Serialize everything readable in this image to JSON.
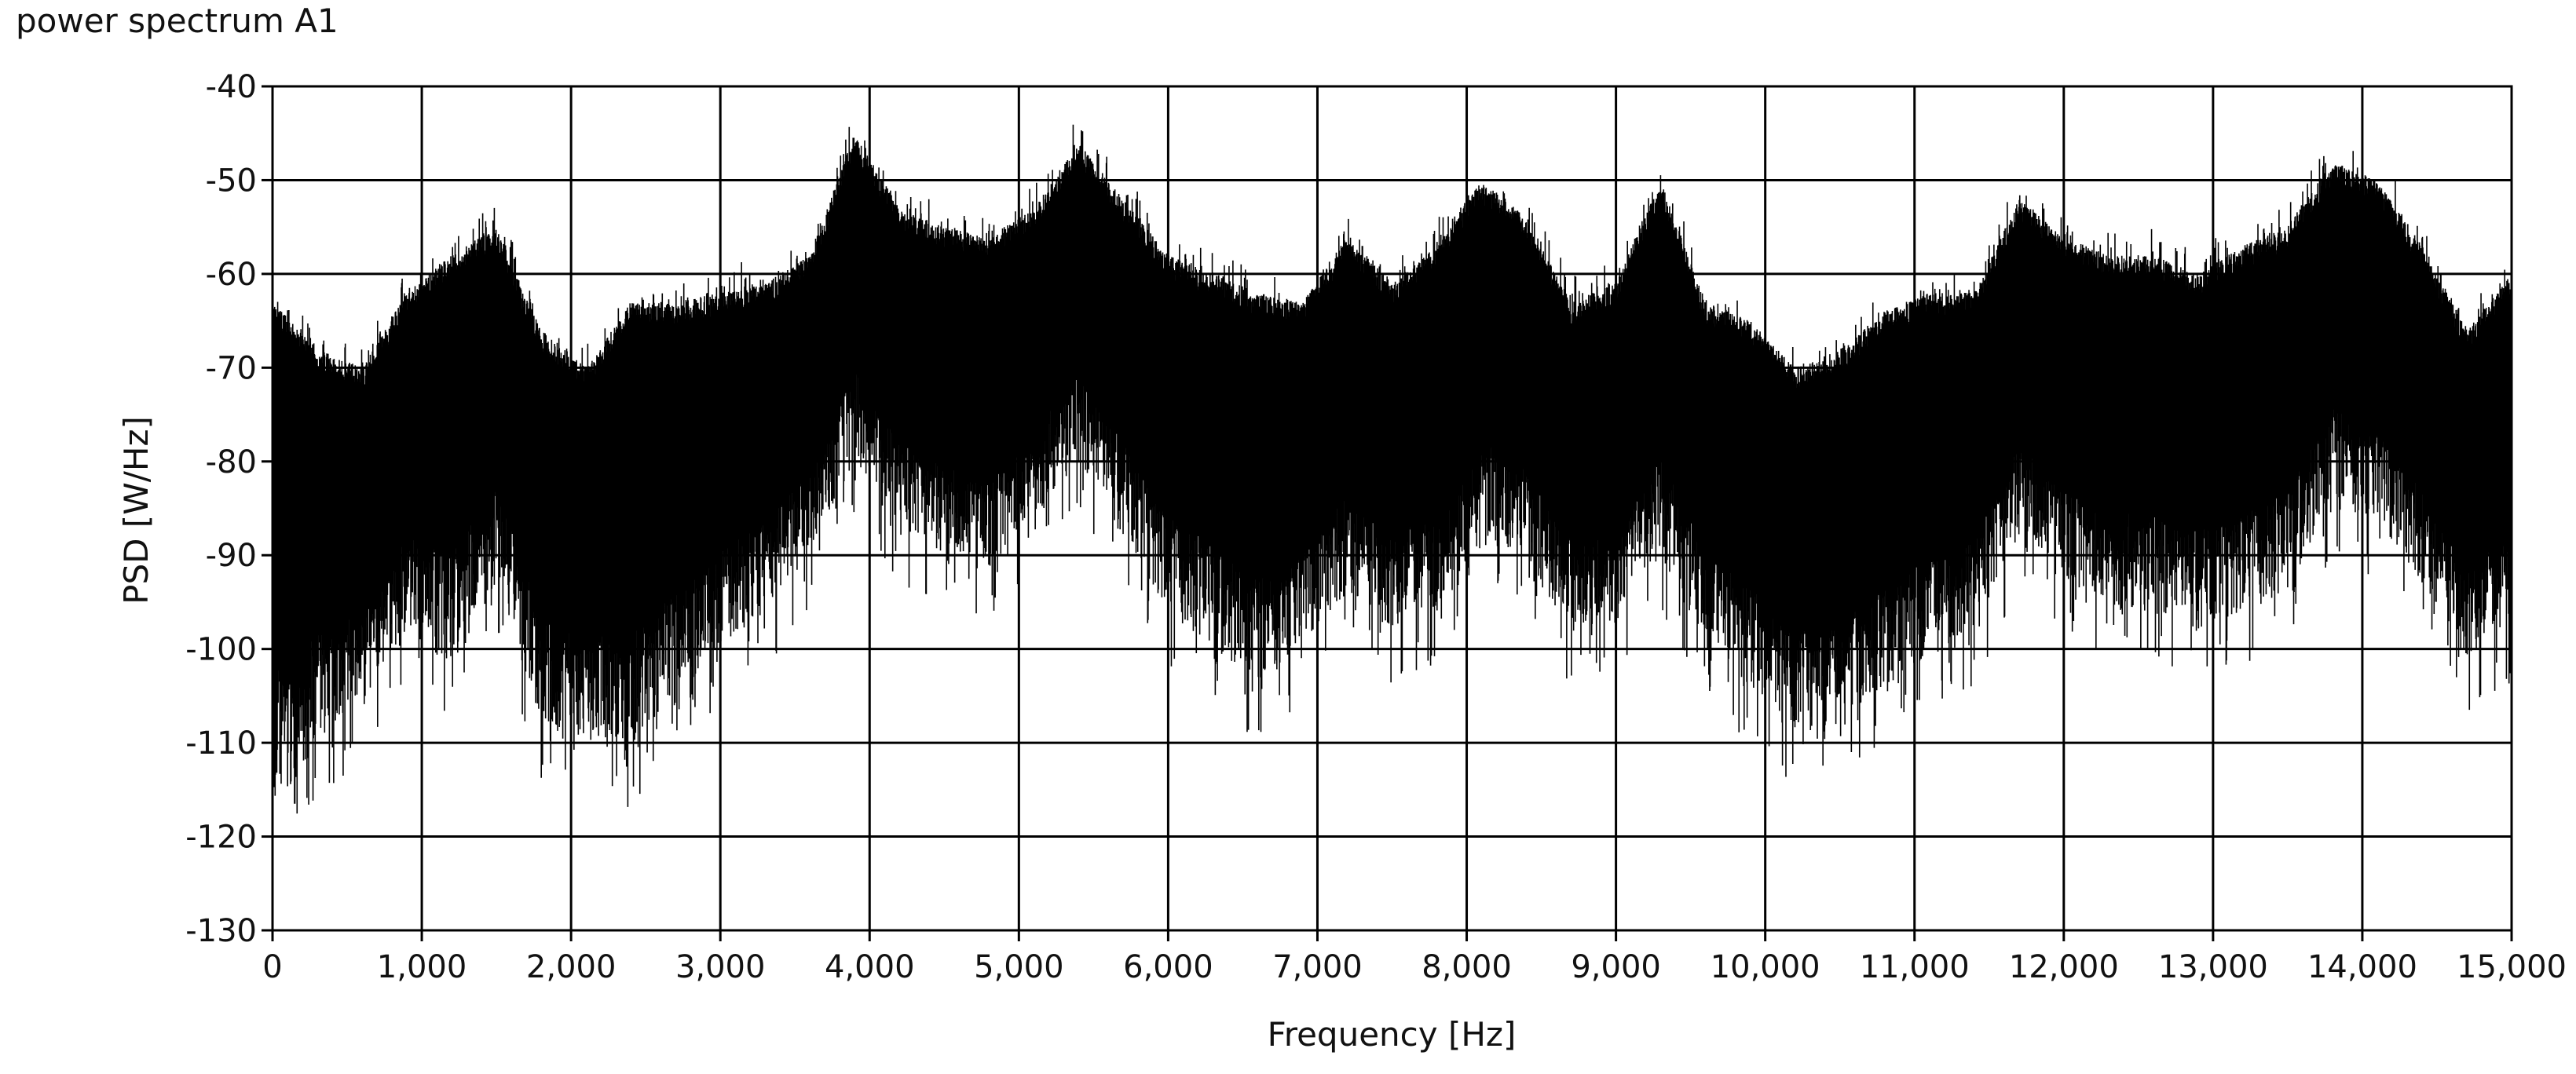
{
  "chart_data": {
    "type": "line",
    "title": "power spectrum A1",
    "xlabel": "Frequency [Hz]",
    "ylabel": "PSD [W/Hz]",
    "xlim": [
      0,
      15000
    ],
    "ylim": [
      -130,
      -40
    ],
    "x_ticks": [
      0,
      1000,
      2000,
      3000,
      4000,
      5000,
      6000,
      7000,
      8000,
      9000,
      10000,
      11000,
      12000,
      13000,
      14000,
      15000
    ],
    "x_tick_labels": [
      "0",
      "1,000",
      "2,000",
      "3,000",
      "4,000",
      "5,000",
      "6,000",
      "7,000",
      "8,000",
      "9,000",
      "10,000",
      "11,000",
      "12,000",
      "13,000",
      "14,000",
      "15,000"
    ],
    "y_ticks": [
      -40,
      -50,
      -60,
      -70,
      -80,
      -90,
      -100,
      -110,
      -120,
      -130
    ],
    "y_tick_labels": [
      "-40",
      "-50",
      "-60",
      "-70",
      "-80",
      "-90",
      "-100",
      "-110",
      "-120",
      "-130"
    ],
    "grid": true,
    "line_color": "#000000",
    "grid_color": "#000000",
    "series": [
      {
        "x": [
          0,
          300,
          600,
          900,
          1200,
          1500,
          1800,
          2100,
          2400,
          2700,
          3000,
          3300,
          3600,
          3900,
          4200,
          4500,
          4800,
          5100,
          5400,
          5700,
          6000,
          6300,
          6600,
          6900,
          7200,
          7500,
          7800,
          8100,
          8400,
          8700,
          9000,
          9300,
          9600,
          9900,
          10200,
          10500,
          10800,
          11100,
          11400,
          11700,
          12000,
          12300,
          12600,
          12900,
          13200,
          13500,
          13800,
          14100,
          14400,
          14700,
          15000
        ],
        "upper": [
          -63,
          -68,
          -70,
          -62,
          -58,
          -55,
          -66,
          -70,
          -63,
          -63,
          -62,
          -61,
          -58,
          -45,
          -53,
          -55,
          -56,
          -53,
          -46,
          -52,
          -58,
          -60,
          -62,
          -63,
          -56,
          -61,
          -57,
          -50,
          -54,
          -63,
          -61,
          -50,
          -63,
          -65,
          -70,
          -68,
          -64,
          -62,
          -62,
          -52,
          -56,
          -58,
          -58,
          -60,
          -57,
          -55,
          -48,
          -50,
          -57,
          -66,
          -60
        ],
        "lower": [
          -118,
          -110,
          -106,
          -98,
          -102,
          -93,
          -108,
          -110,
          -111,
          -106,
          -100,
          -96,
          -90,
          -80,
          -87,
          -90,
          -92,
          -86,
          -80,
          -88,
          -96,
          -100,
          -104,
          -100,
          -94,
          -98,
          -96,
          -88,
          -91,
          -98,
          -97,
          -90,
          -100,
          -104,
          -109,
          -108,
          -104,
          -101,
          -98,
          -88,
          -93,
          -96,
          -96,
          -98,
          -96,
          -94,
          -84,
          -87,
          -93,
          -101,
          -98
        ]
      }
    ]
  }
}
